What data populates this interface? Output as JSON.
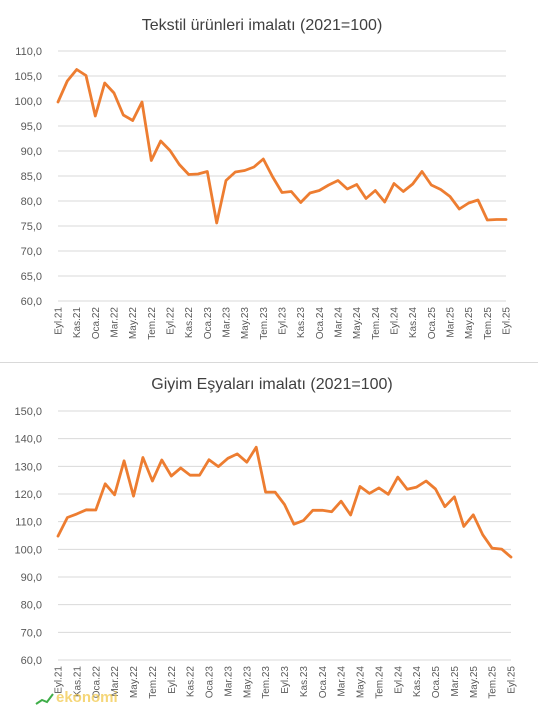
{
  "chart_data": [
    {
      "type": "line",
      "title": "Tekstil ürünleri imalatı (2021=100)",
      "xlabel": "",
      "ylabel": "",
      "ylim": [
        60,
        110
      ],
      "yticks": [
        "60,0",
        "65,0",
        "70,0",
        "75,0",
        "80,0",
        "85,0",
        "90,0",
        "95,0",
        "100,0",
        "105,0",
        "110,0"
      ],
      "ytick_values": [
        60,
        65,
        70,
        75,
        80,
        85,
        90,
        95,
        100,
        105,
        110
      ],
      "x_tick_labels": [
        "Eyl.21",
        "Kas.21",
        "Oca.22",
        "Mar.22",
        "May.22",
        "Tem.22",
        "Eyl.22",
        "Kas.22",
        "Oca.23",
        "Mar.23",
        "May.23",
        "Tem.23",
        "Eyl.23",
        "Kas.23",
        "Oca.24",
        "Mar.24",
        "May.24",
        "Tem.24",
        "Eyl.24",
        "Kas.24",
        "Oca.25",
        "Mar.25",
        "May.25",
        "Tem.25",
        "Eyl.25"
      ],
      "grid": true,
      "legend": "none",
      "color": "#ED7D31",
      "values": [
        99.8,
        104.0,
        106.3,
        105.1,
        97.0,
        103.6,
        101.6,
        97.2,
        96.1,
        99.8,
        88.1,
        92.0,
        90.1,
        87.3,
        85.3,
        85.4,
        85.9,
        75.6,
        84.1,
        85.8,
        86.1,
        86.8,
        88.4,
        84.8,
        81.7,
        81.9,
        79.7,
        81.6,
        82.1,
        83.2,
        84.1,
        82.4,
        83.3,
        80.5,
        82.1,
        79.8,
        83.5,
        81.9,
        83.4,
        85.9,
        83.2,
        82.3,
        80.9,
        78.4,
        79.6,
        80.2,
        76.2,
        76.3,
        76.3
      ]
    },
    {
      "type": "line",
      "title": "Giyim Eşyaları imalatı (2021=100)",
      "xlabel": "",
      "ylabel": "",
      "ylim": [
        60,
        150
      ],
      "yticks": [
        "60,0",
        "70,0",
        "80,0",
        "90,0",
        "100,0",
        "110,0",
        "120,0",
        "130,0",
        "140,0",
        "150,0"
      ],
      "ytick_values": [
        60,
        70,
        80,
        90,
        100,
        110,
        120,
        130,
        140,
        150
      ],
      "x_tick_labels": [
        "Eyl.21",
        "Kas.21",
        "Oca.22",
        "Mar.22",
        "May.22",
        "Tem.22",
        "Eyl.22",
        "Kas.22",
        "Oca.23",
        "Mar.23",
        "May.23",
        "Tem.23",
        "Eyl.23",
        "Kas.23",
        "Oca.24",
        "Mar.24",
        "May.24",
        "Tem.24",
        "Eyl.24",
        "Kas.24",
        "Oca.25",
        "Mar.25",
        "May.25",
        "Tem.25",
        "Eyl.25"
      ],
      "grid": true,
      "legend": "none",
      "color": "#ED7D31",
      "values": [
        104.8,
        111.5,
        112.8,
        114.3,
        114.2,
        123.7,
        119.7,
        132.0,
        119.2,
        133.2,
        124.7,
        132.3,
        126.5,
        129.4,
        126.8,
        126.8,
        132.4,
        129.9,
        132.9,
        134.5,
        131.5,
        136.9,
        120.7,
        120.7,
        116.2,
        109.1,
        110.4,
        114.1,
        114.1,
        113.6,
        117.4,
        112.4,
        122.7,
        120.2,
        122.2,
        119.9,
        126.1,
        121.7,
        122.5,
        124.7,
        121.8,
        115.4,
        119.0,
        108.3,
        112.5,
        105.3,
        100.4,
        100.1,
        97.2
      ]
    }
  ],
  "watermark": {
    "text": "ekonomi"
  }
}
